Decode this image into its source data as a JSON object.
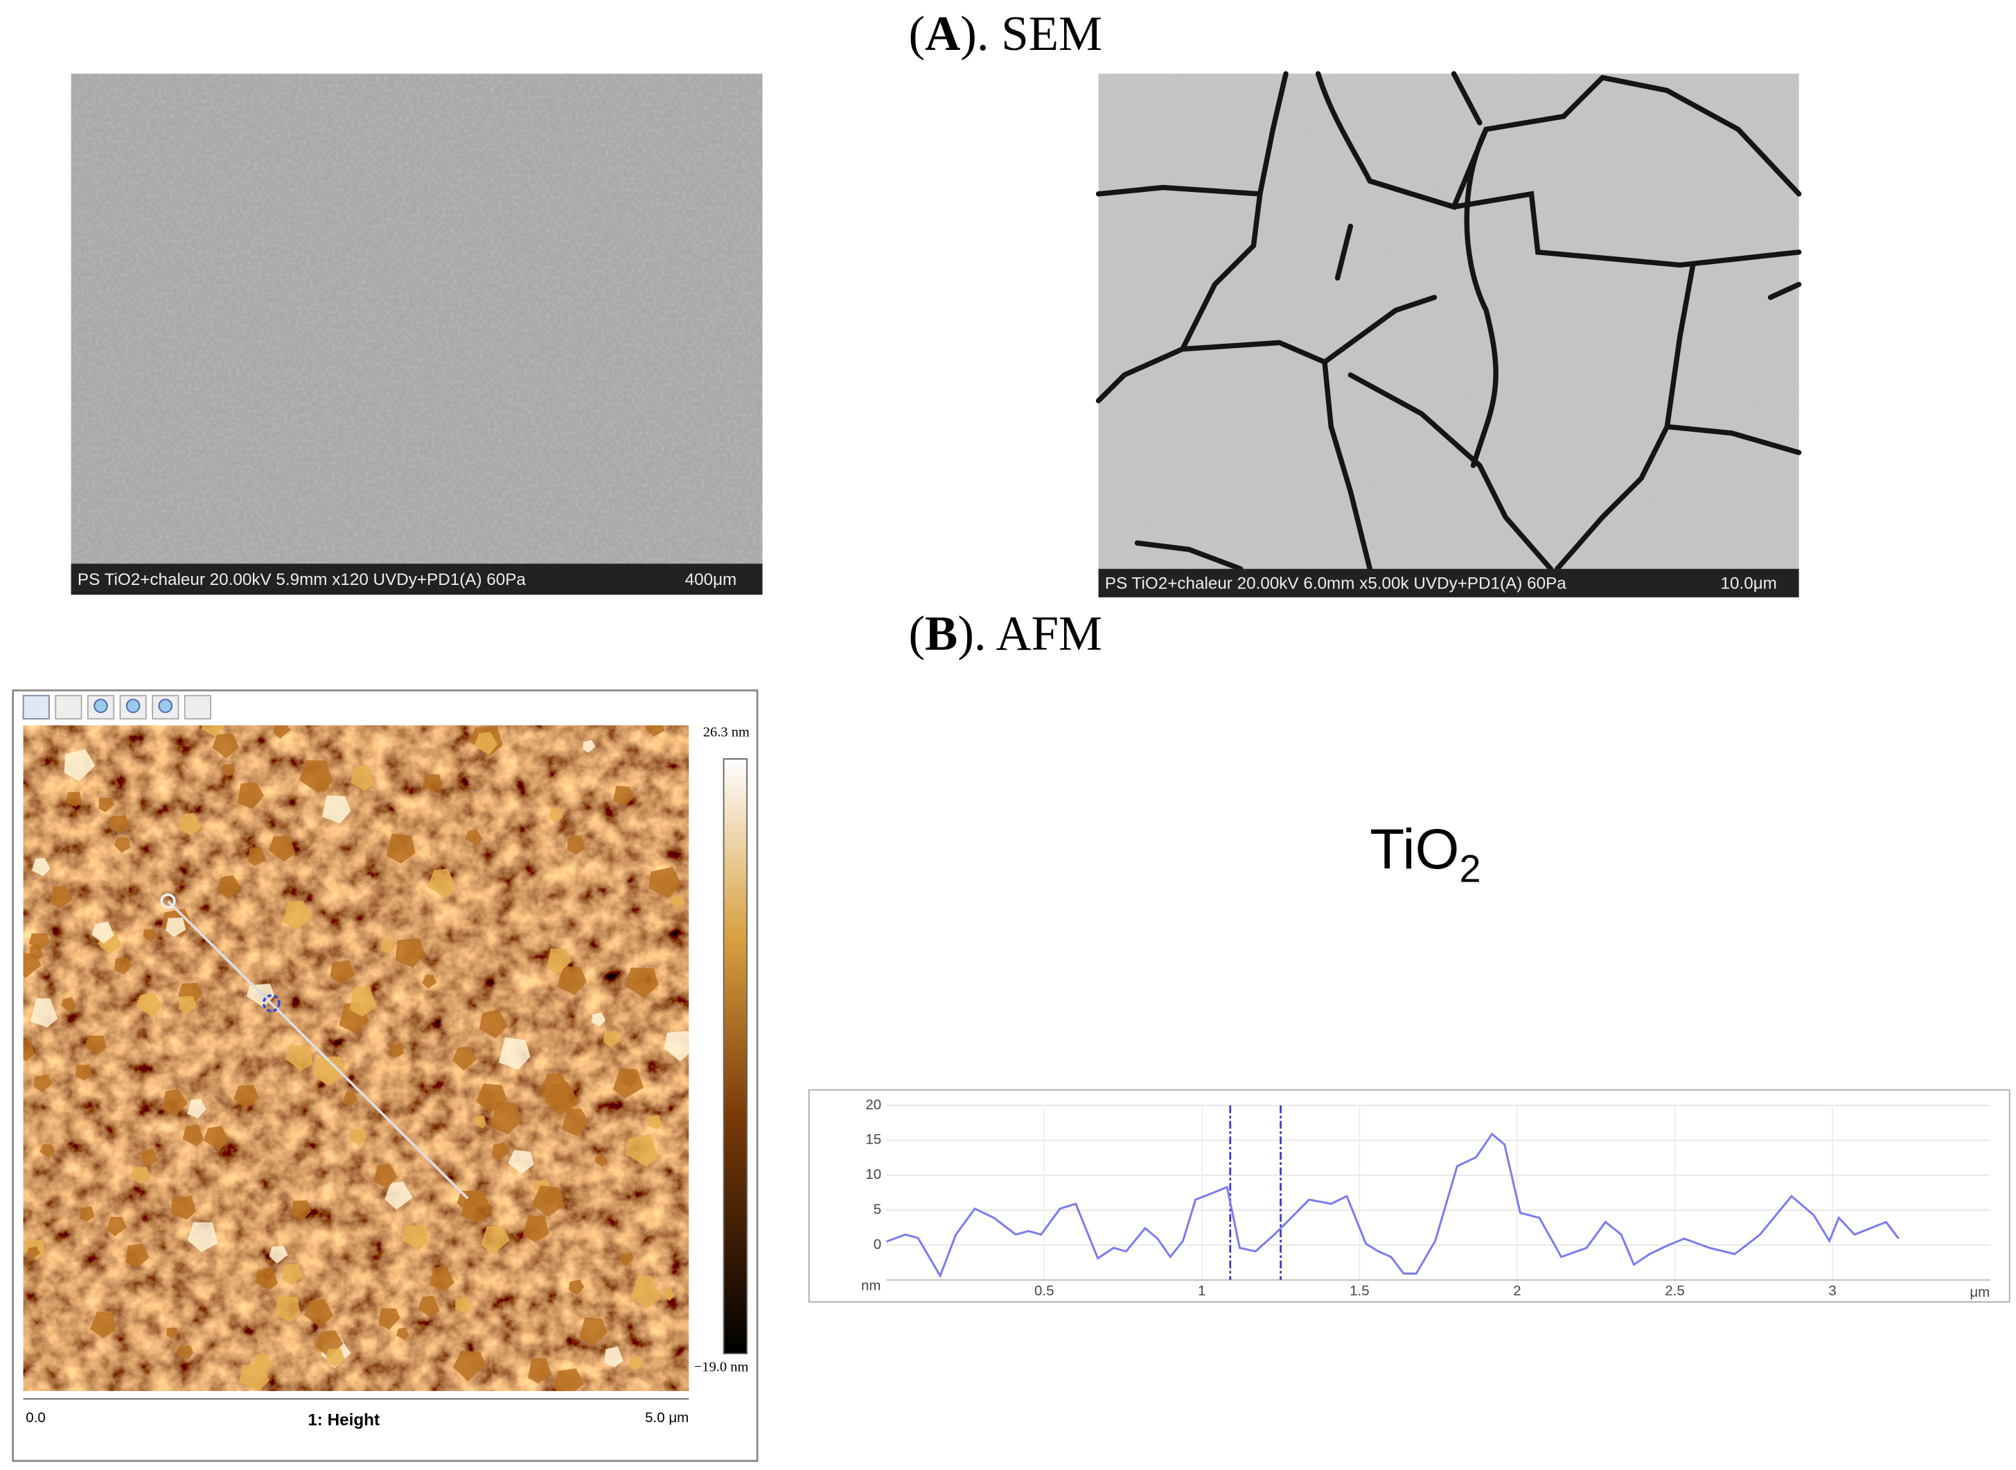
{
  "panel_a": {
    "open": "(",
    "letter": "A",
    "title": "). SEM",
    "images": [
      {
        "caption": "PS TiO2+chaleur 20.00kV 5.9mm x120 UVDy+PD1(A) 60Pa",
        "scale": "400μm"
      },
      {
        "caption": "PS TiO2+chaleur 20.00kV 6.0mm x5.00k UVDy+PD1(A) 60Pa",
        "scale": "10.0μm"
      }
    ]
  },
  "panel_b": {
    "open": "(",
    "letter": "B",
    "title": "). AFM",
    "afm": {
      "max_label": "26.3 nm",
      "min_label": "−19.0 nm",
      "x_start": "0.0",
      "channel": "1: Height",
      "x_end": "5.0 μm"
    },
    "formula": {
      "base": "TiO",
      "subscript": "2"
    }
  },
  "chart_data": {
    "type": "line",
    "y_unit": "nm",
    "x_unit": "μm",
    "x": [
      0,
      0.06,
      0.1,
      0.17,
      0.22,
      0.28,
      0.34,
      0.41,
      0.45,
      0.49,
      0.55,
      0.6,
      0.67,
      0.72,
      0.76,
      0.82,
      0.86,
      0.9,
      0.94,
      0.98,
      1.02,
      1.08,
      1.12,
      1.17,
      1.23,
      1.27,
      1.34,
      1.41,
      1.46,
      1.52,
      1.56,
      1.6,
      1.64,
      1.68,
      1.74,
      1.81,
      1.87,
      1.92,
      1.96,
      2.01,
      2.07,
      2.14,
      2.22,
      2.28,
      2.33,
      2.37,
      2.42,
      2.48,
      2.53,
      2.61,
      2.69,
      2.77,
      2.87,
      2.94,
      2.99,
      3.02,
      3.07,
      3.17,
      3.21
    ],
    "series": [
      {
        "color": "#7b7bf0",
        "values": [
          0.5,
          1.5,
          1,
          -4.4,
          1.5,
          5.2,
          3.9,
          1.5,
          2,
          1.5,
          5.2,
          5.9,
          -1.9,
          -0.4,
          -0.9,
          2.4,
          0.9,
          -1.7,
          0.6,
          6.5,
          7.2,
          8.3,
          -0.4,
          -0.9,
          1.5,
          3.3,
          6.5,
          5.9,
          7,
          0.2,
          -0.9,
          -1.7,
          -4.1,
          -4.1,
          0.6,
          11.3,
          12.6,
          15.9,
          14.4,
          4.6,
          3.9,
          -1.7,
          -0.4,
          3.3,
          1.5,
          -2.8,
          -1.3,
          0,
          0.9,
          -0.4,
          -1.3,
          1.5,
          7,
          4.3,
          0.6,
          3.9,
          1.5,
          3.3,
          0.9
        ]
      }
    ],
    "markers": [
      1.09,
      1.25
    ],
    "marker_color": "#3a3ad0",
    "xlim": [
      0,
      3.5
    ],
    "ylim": [
      -5,
      20
    ],
    "xticks": [
      0.5,
      1,
      1.5,
      2,
      2.5,
      3
    ],
    "yticks": [
      0,
      5,
      10,
      15,
      20
    ],
    "grid": true
  }
}
